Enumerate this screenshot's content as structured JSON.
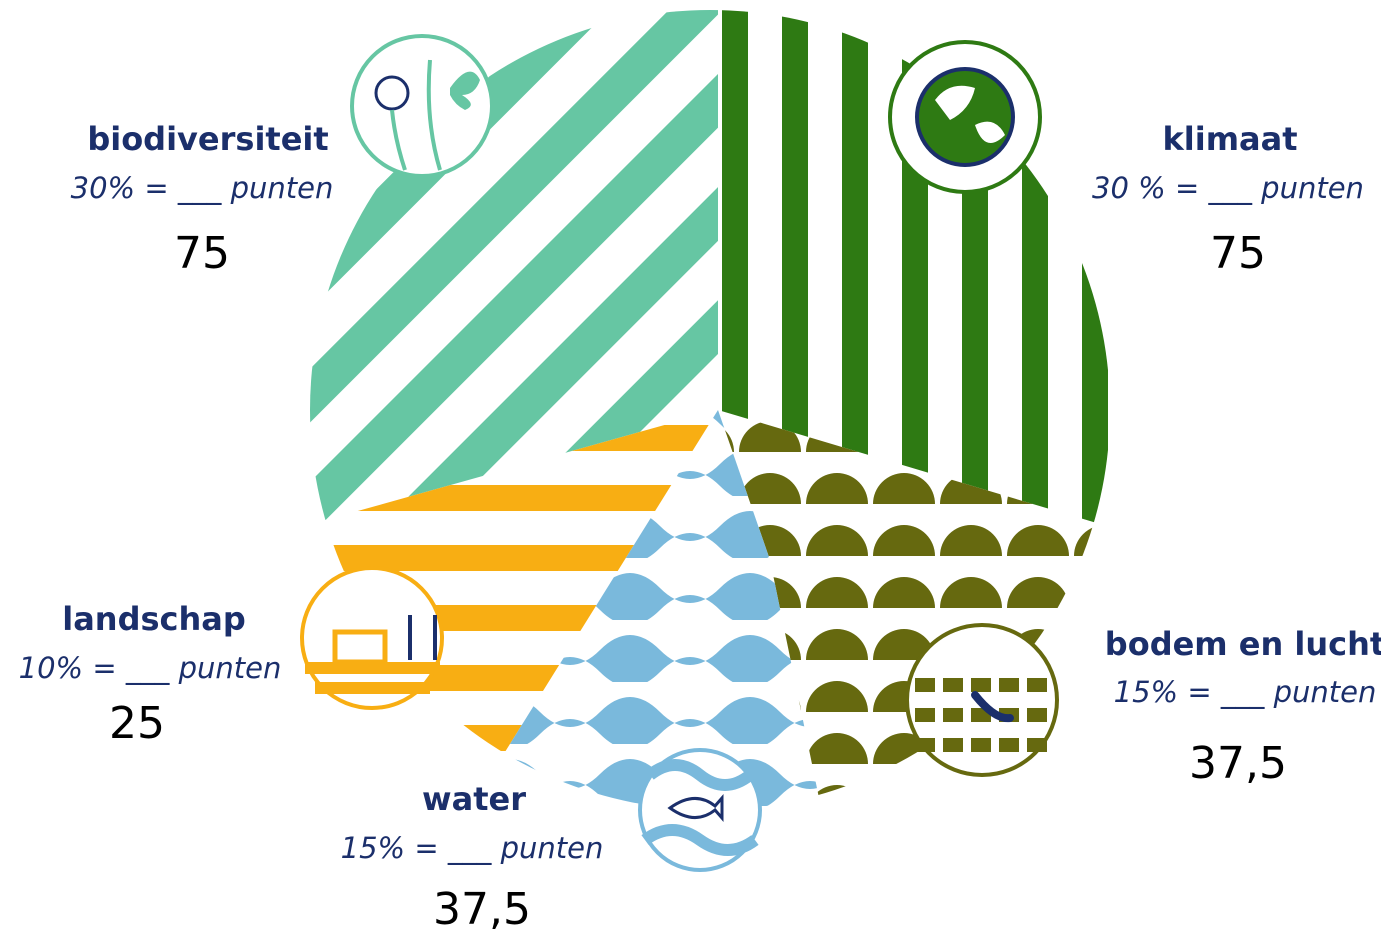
{
  "segments": [
    {
      "title": "biodiversiteit",
      "formula": "30% =  ___ punten",
      "points": "75"
    },
    {
      "title": "klimaat",
      "formula": "30 % = ___ punten",
      "points": "75"
    },
    {
      "title": "landschap",
      "formula": "10% = ___ punten",
      "points": "25"
    },
    {
      "title": "bodem en lucht",
      "formula": "15% = ___ punten",
      "points": "37,5"
    },
    {
      "title": "water",
      "formula": "15% = ___ punten",
      "points": "37,5"
    }
  ]
}
